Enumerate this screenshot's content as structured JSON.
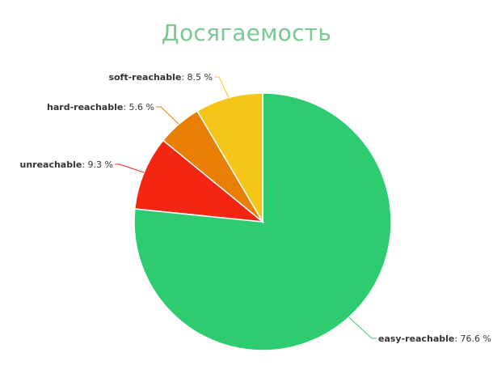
{
  "chart_data": {
    "type": "pie",
    "title": "Досягаемость",
    "unit": "%",
    "series": [
      {
        "slices": [
          {
            "label": "easy-reachable",
            "value": 76.6,
            "color": "#2ecc71"
          },
          {
            "label": "unreachable",
            "value": 9.3,
            "color": "#f22613"
          },
          {
            "label": "hard-reachable",
            "value": 5.6,
            "color": "#e87e04"
          },
          {
            "label": "soft-reachable",
            "value": 8.5,
            "color": "#f5c518"
          }
        ]
      }
    ],
    "value_labels": [
      "76.6 %",
      "9.3 %",
      "5.6 %",
      "8.5 %"
    ],
    "label_separator": ": ",
    "start_angle_deg": 0,
    "direction": "clockwise",
    "legend": "none"
  }
}
